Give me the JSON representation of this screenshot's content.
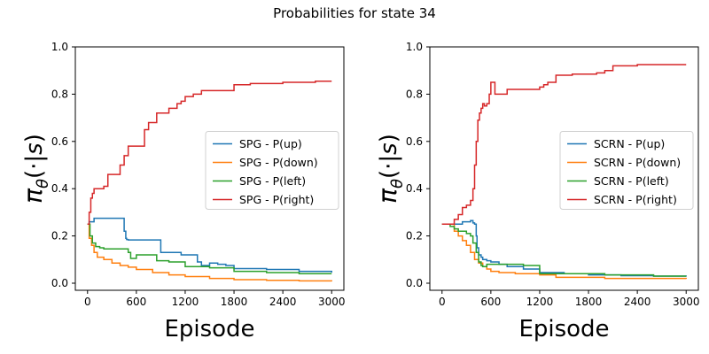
{
  "figure": {
    "suptitle": "Probabilities for state 34"
  },
  "chart_data": [
    {
      "type": "line",
      "title": "",
      "xlabel": "Episode",
      "ylabel": "π_θ(·|s)",
      "xlim": [
        -150,
        3150
      ],
      "ylim": [
        -0.03,
        1.0
      ],
      "xticks": [
        0,
        600,
        1200,
        1800,
        2400,
        3000
      ],
      "yticks": [
        0.0,
        0.2,
        0.4,
        0.6,
        0.8,
        1.0
      ],
      "legend": "center-right",
      "series": [
        {
          "name": "SPG - P(up)",
          "color": "#1f77b4",
          "x": [
            0,
            20,
            80,
            300,
            320,
            420,
            450,
            470,
            480,
            500,
            850,
            900,
            1150,
            1350,
            1400,
            1500,
            1600,
            1700,
            1800,
            2200,
            2600,
            3000
          ],
          "y": [
            0.25,
            0.26,
            0.275,
            0.275,
            0.275,
            0.275,
            0.22,
            0.19,
            0.185,
            0.183,
            0.183,
            0.13,
            0.12,
            0.09,
            0.075,
            0.085,
            0.08,
            0.075,
            0.062,
            0.058,
            0.05,
            0.045
          ]
        },
        {
          "name": "SPG - P(down)",
          "color": "#ff7f0e",
          "x": [
            0,
            20,
            50,
            80,
            120,
            200,
            300,
            400,
            500,
            600,
            800,
            1000,
            1200,
            1500,
            1800,
            2200,
            2600,
            3000
          ],
          "y": [
            0.25,
            0.19,
            0.16,
            0.13,
            0.11,
            0.1,
            0.085,
            0.075,
            0.068,
            0.058,
            0.045,
            0.035,
            0.028,
            0.02,
            0.015,
            0.012,
            0.01,
            0.008
          ]
        },
        {
          "name": "SPG - P(left)",
          "color": "#2ca02c",
          "x": [
            0,
            30,
            60,
            100,
            150,
            200,
            450,
            500,
            530,
            600,
            750,
            850,
            1000,
            1200,
            1500,
            1800,
            2200,
            2600,
            3000
          ],
          "y": [
            0.25,
            0.2,
            0.17,
            0.155,
            0.15,
            0.145,
            0.145,
            0.13,
            0.105,
            0.12,
            0.12,
            0.095,
            0.09,
            0.07,
            0.065,
            0.05,
            0.045,
            0.04,
            0.04
          ]
        },
        {
          "name": "SPG - P(right)",
          "color": "#d62728",
          "x": [
            0,
            20,
            40,
            60,
            80,
            150,
            200,
            250,
            300,
            400,
            450,
            500,
            600,
            700,
            750,
            800,
            850,
            900,
            1000,
            1100,
            1150,
            1200,
            1300,
            1400,
            1500,
            1600,
            1700,
            1800,
            2000,
            2200,
            2400,
            2600,
            2800,
            3000
          ],
          "y": [
            0.25,
            0.3,
            0.36,
            0.38,
            0.4,
            0.4,
            0.41,
            0.46,
            0.46,
            0.5,
            0.54,
            0.58,
            0.58,
            0.65,
            0.68,
            0.68,
            0.72,
            0.72,
            0.74,
            0.76,
            0.77,
            0.79,
            0.8,
            0.815,
            0.815,
            0.815,
            0.815,
            0.84,
            0.845,
            0.845,
            0.85,
            0.85,
            0.855,
            0.855
          ]
        }
      ]
    },
    {
      "type": "line",
      "title": "",
      "xlabel": "Episode",
      "ylabel": "π_θ(·|s)",
      "xlim": [
        -150,
        3150
      ],
      "ylim": [
        -0.03,
        1.0
      ],
      "xticks": [
        0,
        600,
        1200,
        1800,
        2400,
        3000
      ],
      "yticks": [
        0.0,
        0.2,
        0.4,
        0.6,
        0.8,
        1.0
      ],
      "legend": "center-right",
      "series": [
        {
          "name": "SCRN - P(up)",
          "color": "#1f77b4",
          "x": [
            0,
            80,
            150,
            250,
            350,
            380,
            400,
            420,
            430,
            450,
            480,
            500,
            550,
            600,
            700,
            800,
            1000,
            1200,
            1500,
            1800,
            2200,
            2600,
            3000
          ],
          "y": [
            0.25,
            0.25,
            0.25,
            0.26,
            0.265,
            0.255,
            0.25,
            0.2,
            0.15,
            0.12,
            0.11,
            0.1,
            0.095,
            0.09,
            0.08,
            0.07,
            0.06,
            0.045,
            0.04,
            0.035,
            0.032,
            0.03,
            0.028
          ]
        },
        {
          "name": "SCRN - P(down)",
          "color": "#ff7f0e",
          "x": [
            0,
            80,
            150,
            200,
            250,
            300,
            350,
            400,
            450,
            500,
            550,
            600,
            700,
            900,
            1200,
            1400,
            1600,
            2000,
            2500,
            3000
          ],
          "y": [
            0.25,
            0.25,
            0.22,
            0.2,
            0.18,
            0.16,
            0.13,
            0.1,
            0.085,
            0.07,
            0.06,
            0.05,
            0.045,
            0.04,
            0.035,
            0.025,
            0.025,
            0.02,
            0.02,
            0.018
          ]
        },
        {
          "name": "SCRN - P(left)",
          "color": "#2ca02c",
          "x": [
            0,
            100,
            150,
            200,
            300,
            350,
            380,
            420,
            450,
            480,
            500,
            550,
            600,
            800,
            1000,
            1200,
            1400,
            2000,
            2600,
            3000
          ],
          "y": [
            0.25,
            0.24,
            0.23,
            0.22,
            0.21,
            0.2,
            0.17,
            0.13,
            0.09,
            0.075,
            0.07,
            0.08,
            0.08,
            0.08,
            0.075,
            0.04,
            0.04,
            0.035,
            0.03,
            0.03
          ]
        },
        {
          "name": "SCRN - P(right)",
          "color": "#d62728",
          "x": [
            0,
            80,
            150,
            200,
            250,
            300,
            350,
            380,
            400,
            420,
            440,
            460,
            480,
            500,
            520,
            550,
            580,
            600,
            620,
            650,
            700,
            800,
            900,
            1000,
            1200,
            1250,
            1300,
            1400,
            1600,
            1800,
            1900,
            2000,
            2100,
            2200,
            2400,
            3000
          ],
          "y": [
            0.25,
            0.25,
            0.27,
            0.29,
            0.32,
            0.33,
            0.35,
            0.4,
            0.5,
            0.6,
            0.69,
            0.72,
            0.74,
            0.76,
            0.75,
            0.76,
            0.8,
            0.85,
            0.85,
            0.8,
            0.8,
            0.82,
            0.82,
            0.82,
            0.83,
            0.84,
            0.85,
            0.88,
            0.885,
            0.885,
            0.89,
            0.9,
            0.92,
            0.92,
            0.925,
            0.925
          ]
        }
      ]
    }
  ]
}
